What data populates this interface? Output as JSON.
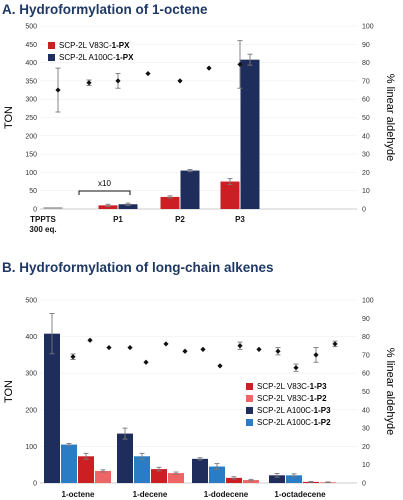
{
  "colors": {
    "red": "#cc1f24",
    "navy": "#1f2d5c",
    "lightred": "#ef6465",
    "blue": "#2a7dc4",
    "grey": "#a6a6a6"
  },
  "chart_data": [
    {
      "type": "bar",
      "title": "A. Hydroformylation of 1-octene",
      "ylabel": "TON",
      "y2label": "% linear aldehyde",
      "ylim": [
        0,
        500
      ],
      "y2lim": [
        0,
        100
      ],
      "yticks": [
        "0",
        "50",
        "100",
        "150",
        "200",
        "250",
        "300",
        "350",
        "400",
        "450",
        "500"
      ],
      "y2ticks": [
        "0",
        "10",
        "20",
        "30",
        "40",
        "50",
        "60",
        "70",
        "80",
        "90",
        "100"
      ],
      "categories": [
        "TPPTS 300 eq.",
        "P1",
        "P2",
        "P3"
      ],
      "category_lines": [
        [
          "TPPTS",
          "300 eq."
        ],
        [
          "P1"
        ],
        [
          "P2"
        ],
        [
          "P3"
        ]
      ],
      "legend_placement": "top-left",
      "series": [
        {
          "name": "SCP-2L V83C-",
          "name_bold": "1-PX",
          "color": "#cc1f24",
          "values": [
            3,
            10,
            33,
            75
          ],
          "errors": [
            2,
            3,
            3,
            8
          ]
        },
        {
          "name": "SCP-2L A100C-",
          "name_bold": "1-PX",
          "color": "#1f2d5c",
          "values": [
            null,
            13,
            105,
            408
          ],
          "errors": [
            null,
            3,
            3,
            15
          ]
        }
      ],
      "reference_series": {
        "category": "TPPTS 300 eq.",
        "color": "#a6a6a6",
        "value": 5
      },
      "linear_aldehyde": [
        {
          "category": "TPPTS 300 eq.",
          "value": 65,
          "error": 12
        },
        {
          "category": "P1",
          "value": 69,
          "error": 1.5
        },
        {
          "category": "P1",
          "value": 70,
          "error": 4
        },
        {
          "category": "P2",
          "value": 74,
          "error": 0
        },
        {
          "category": "P2",
          "value": 70,
          "error": 0
        },
        {
          "category": "P3",
          "value": 77,
          "error": 0
        },
        {
          "category": "P3",
          "value": 79,
          "error": 13
        }
      ],
      "annotation": "x10"
    },
    {
      "type": "bar",
      "title": "B. Hydroformylation of long-chain alkenes",
      "ylabel": "TON",
      "y2label": "% linear aldehyde",
      "ylim": [
        0,
        500
      ],
      "y2lim": [
        0,
        100
      ],
      "yticks": [
        "0",
        "100",
        "200",
        "300",
        "400",
        "500"
      ],
      "y2ticks": [
        "0",
        "10",
        "20",
        "30",
        "40",
        "50",
        "60",
        "70",
        "80",
        "90",
        "100"
      ],
      "categories": [
        "1-octene",
        "1-decene",
        "1-dodecene",
        "1-octadecene"
      ],
      "legend_placement": "center-right",
      "series": [
        {
          "name": "SCP-2L A100C-",
          "name_bold": "1-P3",
          "color": "#1f2d5c",
          "values": [
            408,
            135,
            66,
            21
          ],
          "errors": [
            55,
            15,
            3,
            5
          ]
        },
        {
          "name": "SCP-2L A100C-",
          "name_bold": "1-P2",
          "color": "#2a7dc4",
          "values": [
            105,
            73,
            45,
            21
          ],
          "errors": [
            3,
            8,
            8,
            4
          ]
        },
        {
          "name": "SCP-2L V83C-",
          "name_bold": "1-P3",
          "color": "#cc1f24",
          "values": [
            73,
            38,
            14,
            3
          ],
          "errors": [
            8,
            5,
            3,
            1
          ]
        },
        {
          "name": "SCP-2L V83C-",
          "name_bold": "1-P2",
          "color": "#ef6465",
          "values": [
            33,
            27,
            8,
            2
          ],
          "errors": [
            3,
            3,
            2,
            1
          ]
        }
      ],
      "legend_order": [
        2,
        3,
        0,
        1
      ],
      "linear_aldehyde": [
        {
          "category": "1-octene",
          "value": 69,
          "error": 1.5
        },
        {
          "category": "1-octene",
          "value": 78,
          "error": 0
        },
        {
          "category": "1-octene",
          "value": 74,
          "error": 0
        },
        {
          "category": "1-octene",
          "value": 74,
          "error": 0
        },
        {
          "category": "1-decene",
          "value": 66,
          "error": 0
        },
        {
          "category": "1-decene",
          "value": 76,
          "error": 0
        },
        {
          "category": "1-decene",
          "value": 72,
          "error": 0
        },
        {
          "category": "1-decene",
          "value": 73,
          "error": 0
        },
        {
          "category": "1-dodecene",
          "value": 64,
          "error": 0
        },
        {
          "category": "1-dodecene",
          "value": 75,
          "error": 2
        },
        {
          "category": "1-dodecene",
          "value": 73,
          "error": 0
        },
        {
          "category": "1-dodecene",
          "value": 72,
          "error": 2
        },
        {
          "category": "1-octadecene",
          "value": 63,
          "error": 2
        },
        {
          "category": "1-octadecene",
          "value": 70,
          "error": 4
        },
        {
          "category": "1-octadecene",
          "value": 76,
          "error": 1.5
        }
      ]
    }
  ]
}
